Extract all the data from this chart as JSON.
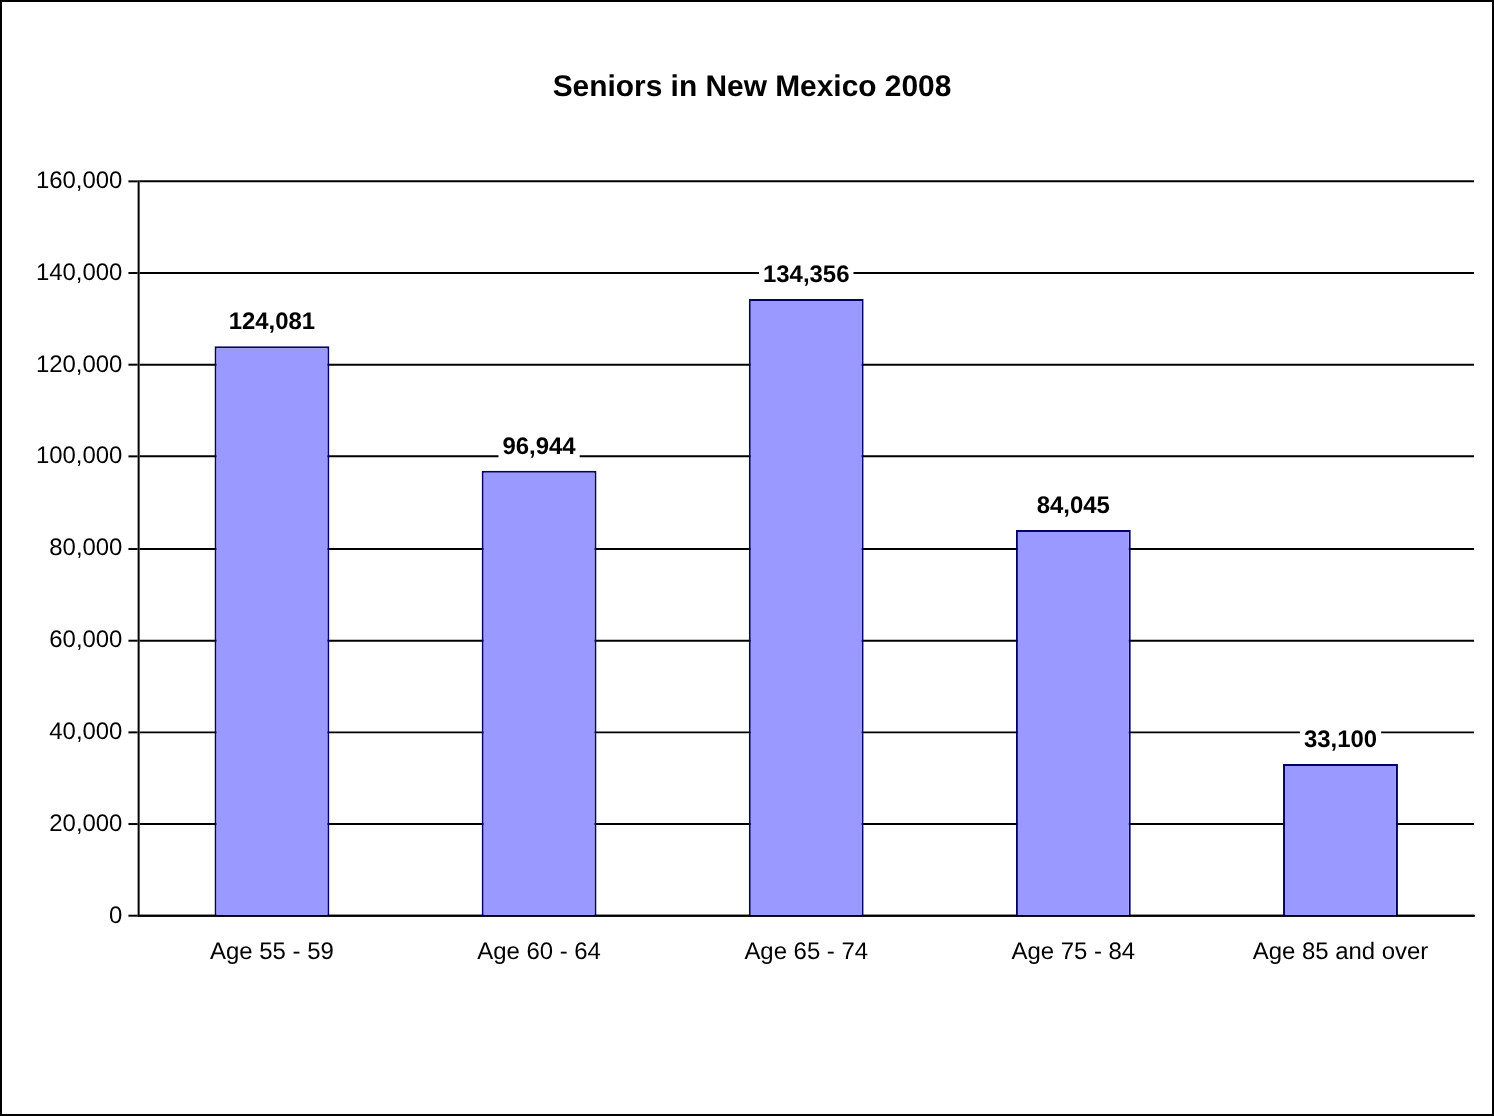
{
  "chart_data": {
    "type": "bar",
    "title": "Seniors in New Mexico 2008",
    "categories": [
      "Age 55 - 59",
      "Age 60 - 64",
      "Age 65 - 74",
      "Age 75 - 84",
      "Age 85 and over"
    ],
    "values": [
      124081,
      96944,
      134356,
      84045,
      33100
    ],
    "color": "#9999ff",
    "ylim": [
      0,
      160000
    ],
    "yticks": [
      {
        "value": 0,
        "label": "0"
      },
      {
        "value": 20000,
        "label": "20,000"
      },
      {
        "value": 40000,
        "label": "40,000"
      },
      {
        "value": 60000,
        "label": "60,000"
      },
      {
        "value": 80000,
        "label": "80,000"
      },
      {
        "value": 100000,
        "label": "100,000"
      },
      {
        "value": 120000,
        "label": "120,000"
      },
      {
        "value": 140000,
        "label": "140,000"
      },
      {
        "value": 160000,
        "label": "160,000"
      }
    ],
    "value_labels": [
      "124,081",
      "96,944",
      "134,356",
      "84,045",
      "33,100"
    ],
    "data_labels": true,
    "grid": "y",
    "legend": false
  }
}
